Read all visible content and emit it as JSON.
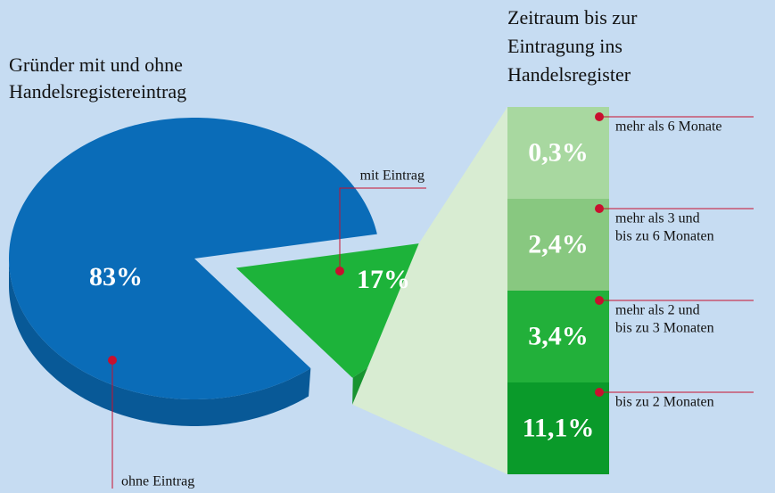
{
  "chart_data": [
    {
      "type": "pie",
      "title": [
        "Gründer mit und ohne",
        "Handelsregistereintrag"
      ],
      "categories": [
        "ohne Eintrag",
        "mit Eintrag"
      ],
      "values": [
        83,
        17
      ],
      "value_labels": [
        "83%",
        "17%"
      ],
      "colors": [
        "#0a6cb8",
        "#1db33a"
      ]
    },
    {
      "type": "stacked-bar",
      "title": [
        "Zeitraum bis zur",
        "Eintragung ins",
        "Handelsregister"
      ],
      "categories": [
        [
          "bis zu 2 Monaten"
        ],
        [
          "mehr als 2 und",
          "bis zu 3 Monaten"
        ],
        [
          "mehr als 3 und",
          "bis zu 6 Monaten"
        ],
        [
          "mehr als 6 Monate"
        ]
      ],
      "values": [
        11.1,
        3.4,
        2.4,
        0.3
      ],
      "value_labels": [
        "11,1%",
        "3,4%",
        "2,4%",
        "0,3%"
      ],
      "colors": [
        "#0a9a2a",
        "#22b03a",
        "#88c880",
        "#a8d8a0"
      ]
    }
  ]
}
